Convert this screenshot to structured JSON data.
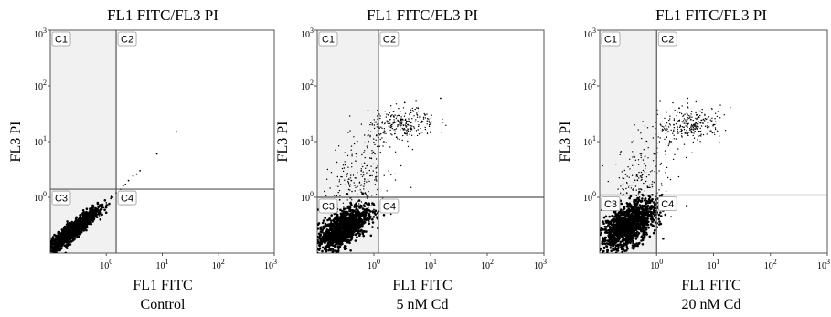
{
  "chart_data": [
    {
      "type": "scatter",
      "title": "FL1 FITC/FL3 PI",
      "xlabel": "FL1 FITC",
      "ylabel": "FL3 PI",
      "caption": "Control",
      "xscale": "log",
      "yscale": "log",
      "xlim": [
        0.1,
        1000
      ],
      "ylim": [
        0.1,
        1000
      ],
      "x_tick_labels": [
        "10^0",
        "10^1",
        "10^2",
        "10^3"
      ],
      "y_tick_labels": [
        "10^0",
        "10^1",
        "10^2",
        "10^3"
      ],
      "gate_x": 1.5,
      "gate_y": 1.4,
      "quadrants": [
        "C1",
        "C2",
        "C3",
        "C4"
      ],
      "grid": false,
      "points": [
        [
          0.2,
          0.17
        ],
        [
          0.3,
          0.25
        ],
        [
          0.4,
          0.32
        ],
        [
          0.5,
          0.4
        ],
        [
          0.6,
          0.5
        ],
        [
          0.8,
          0.62
        ],
        [
          1.0,
          0.8
        ],
        [
          1.2,
          0.95
        ],
        [
          1.5,
          1.2
        ],
        [
          2.0,
          1.6
        ],
        [
          2.5,
          2.0
        ],
        [
          3.0,
          2.4
        ],
        [
          4.0,
          3.0
        ],
        [
          0.25,
          0.2
        ],
        [
          0.35,
          0.26
        ],
        [
          0.45,
          0.3
        ],
        [
          0.7,
          0.5
        ],
        [
          0.9,
          0.65
        ],
        [
          1.3,
          1.0
        ],
        [
          1.8,
          1.4
        ],
        [
          2.2,
          1.7
        ],
        [
          3.5,
          2.6
        ],
        [
          18,
          15
        ],
        [
          8,
          6
        ],
        [
          0.15,
          0.15
        ],
        [
          0.22,
          0.14
        ],
        [
          0.33,
          0.2
        ],
        [
          0.55,
          0.33
        ],
        [
          0.75,
          0.45
        ],
        [
          1.1,
          0.7
        ]
      ]
    },
    {
      "type": "scatter",
      "title": "FL1 FITC/FL3 PI",
      "xlabel": "FL1 FITC",
      "ylabel": "FL3 PI",
      "caption": "5 nM Cd",
      "xscale": "log",
      "yscale": "log",
      "xlim": [
        0.1,
        1000
      ],
      "ylim": [
        0.1,
        1000
      ],
      "x_tick_labels": [
        "10^0",
        "10^1",
        "10^2",
        "10^3"
      ],
      "y_tick_labels": [
        "10^0",
        "10^1",
        "10^2",
        "10^3"
      ],
      "gate_x": 1.2,
      "gate_y": 1.0,
      "quadrants": [
        "C1",
        "C2",
        "C3",
        "C4"
      ],
      "grid": false,
      "points": [
        [
          0.2,
          0.2
        ],
        [
          0.3,
          0.3
        ],
        [
          0.4,
          0.35
        ],
        [
          0.5,
          0.4
        ],
        [
          0.6,
          0.5
        ],
        [
          0.8,
          0.6
        ],
        [
          0.3,
          0.5
        ],
        [
          0.5,
          0.8
        ],
        [
          0.7,
          1.2
        ],
        [
          0.25,
          0.9
        ],
        [
          0.4,
          2.0
        ],
        [
          0.6,
          3.0
        ],
        [
          0.9,
          5.0
        ],
        [
          1.5,
          10
        ],
        [
          2.0,
          18
        ],
        [
          3.0,
          25
        ],
        [
          4.0,
          20
        ],
        [
          5.0,
          35
        ],
        [
          6.0,
          40
        ],
        [
          8.0,
          30
        ],
        [
          2.5,
          12
        ],
        [
          3.5,
          50
        ],
        [
          1.8,
          30
        ],
        [
          10,
          15
        ],
        [
          15,
          60
        ],
        [
          1.0,
          0.6
        ],
        [
          2.0,
          0.5
        ],
        [
          1.5,
          0.8
        ],
        [
          0.35,
          0.25
        ],
        [
          0.15,
          0.18
        ]
      ]
    },
    {
      "type": "scatter",
      "title": "FL1 FITC/FL3 PI",
      "xlabel": "FL1 FITC",
      "ylabel": "FL3 PI",
      "caption": "20 nM Cd",
      "xscale": "log",
      "yscale": "log",
      "xlim": [
        0.1,
        1000
      ],
      "ylim": [
        0.1,
        1000
      ],
      "x_tick_labels": [
        "10^0",
        "10^1",
        "10^2",
        "10^3"
      ],
      "y_tick_labels": [
        "10^0",
        "10^1",
        "10^2",
        "10^3"
      ],
      "gate_x": 1.0,
      "gate_y": 1.1,
      "quadrants": [
        "C1",
        "C2",
        "C3",
        "C4"
      ],
      "grid": false,
      "points": [
        [
          0.2,
          0.2
        ],
        [
          0.3,
          0.25
        ],
        [
          0.4,
          0.3
        ],
        [
          0.5,
          0.4
        ],
        [
          0.6,
          0.45
        ],
        [
          0.8,
          0.55
        ],
        [
          0.35,
          0.6
        ],
        [
          0.5,
          1.0
        ],
        [
          0.7,
          1.5
        ],
        [
          0.3,
          1.2
        ],
        [
          0.45,
          2.5
        ],
        [
          0.6,
          4.0
        ],
        [
          0.9,
          6.0
        ],
        [
          1.5,
          12
        ],
        [
          2.0,
          20
        ],
        [
          3.0,
          18
        ],
        [
          4.0,
          25
        ],
        [
          5.0,
          30
        ],
        [
          6.0,
          15
        ],
        [
          8.0,
          22
        ],
        [
          2.5,
          40
        ],
        [
          3.5,
          60
        ],
        [
          1.8,
          10
        ],
        [
          10,
          20
        ],
        [
          12,
          35
        ],
        [
          1.1,
          0.6
        ],
        [
          1.8,
          0.45
        ],
        [
          1.4,
          0.7
        ],
        [
          0.4,
          0.2
        ],
        [
          0.15,
          0.17
        ]
      ]
    }
  ]
}
